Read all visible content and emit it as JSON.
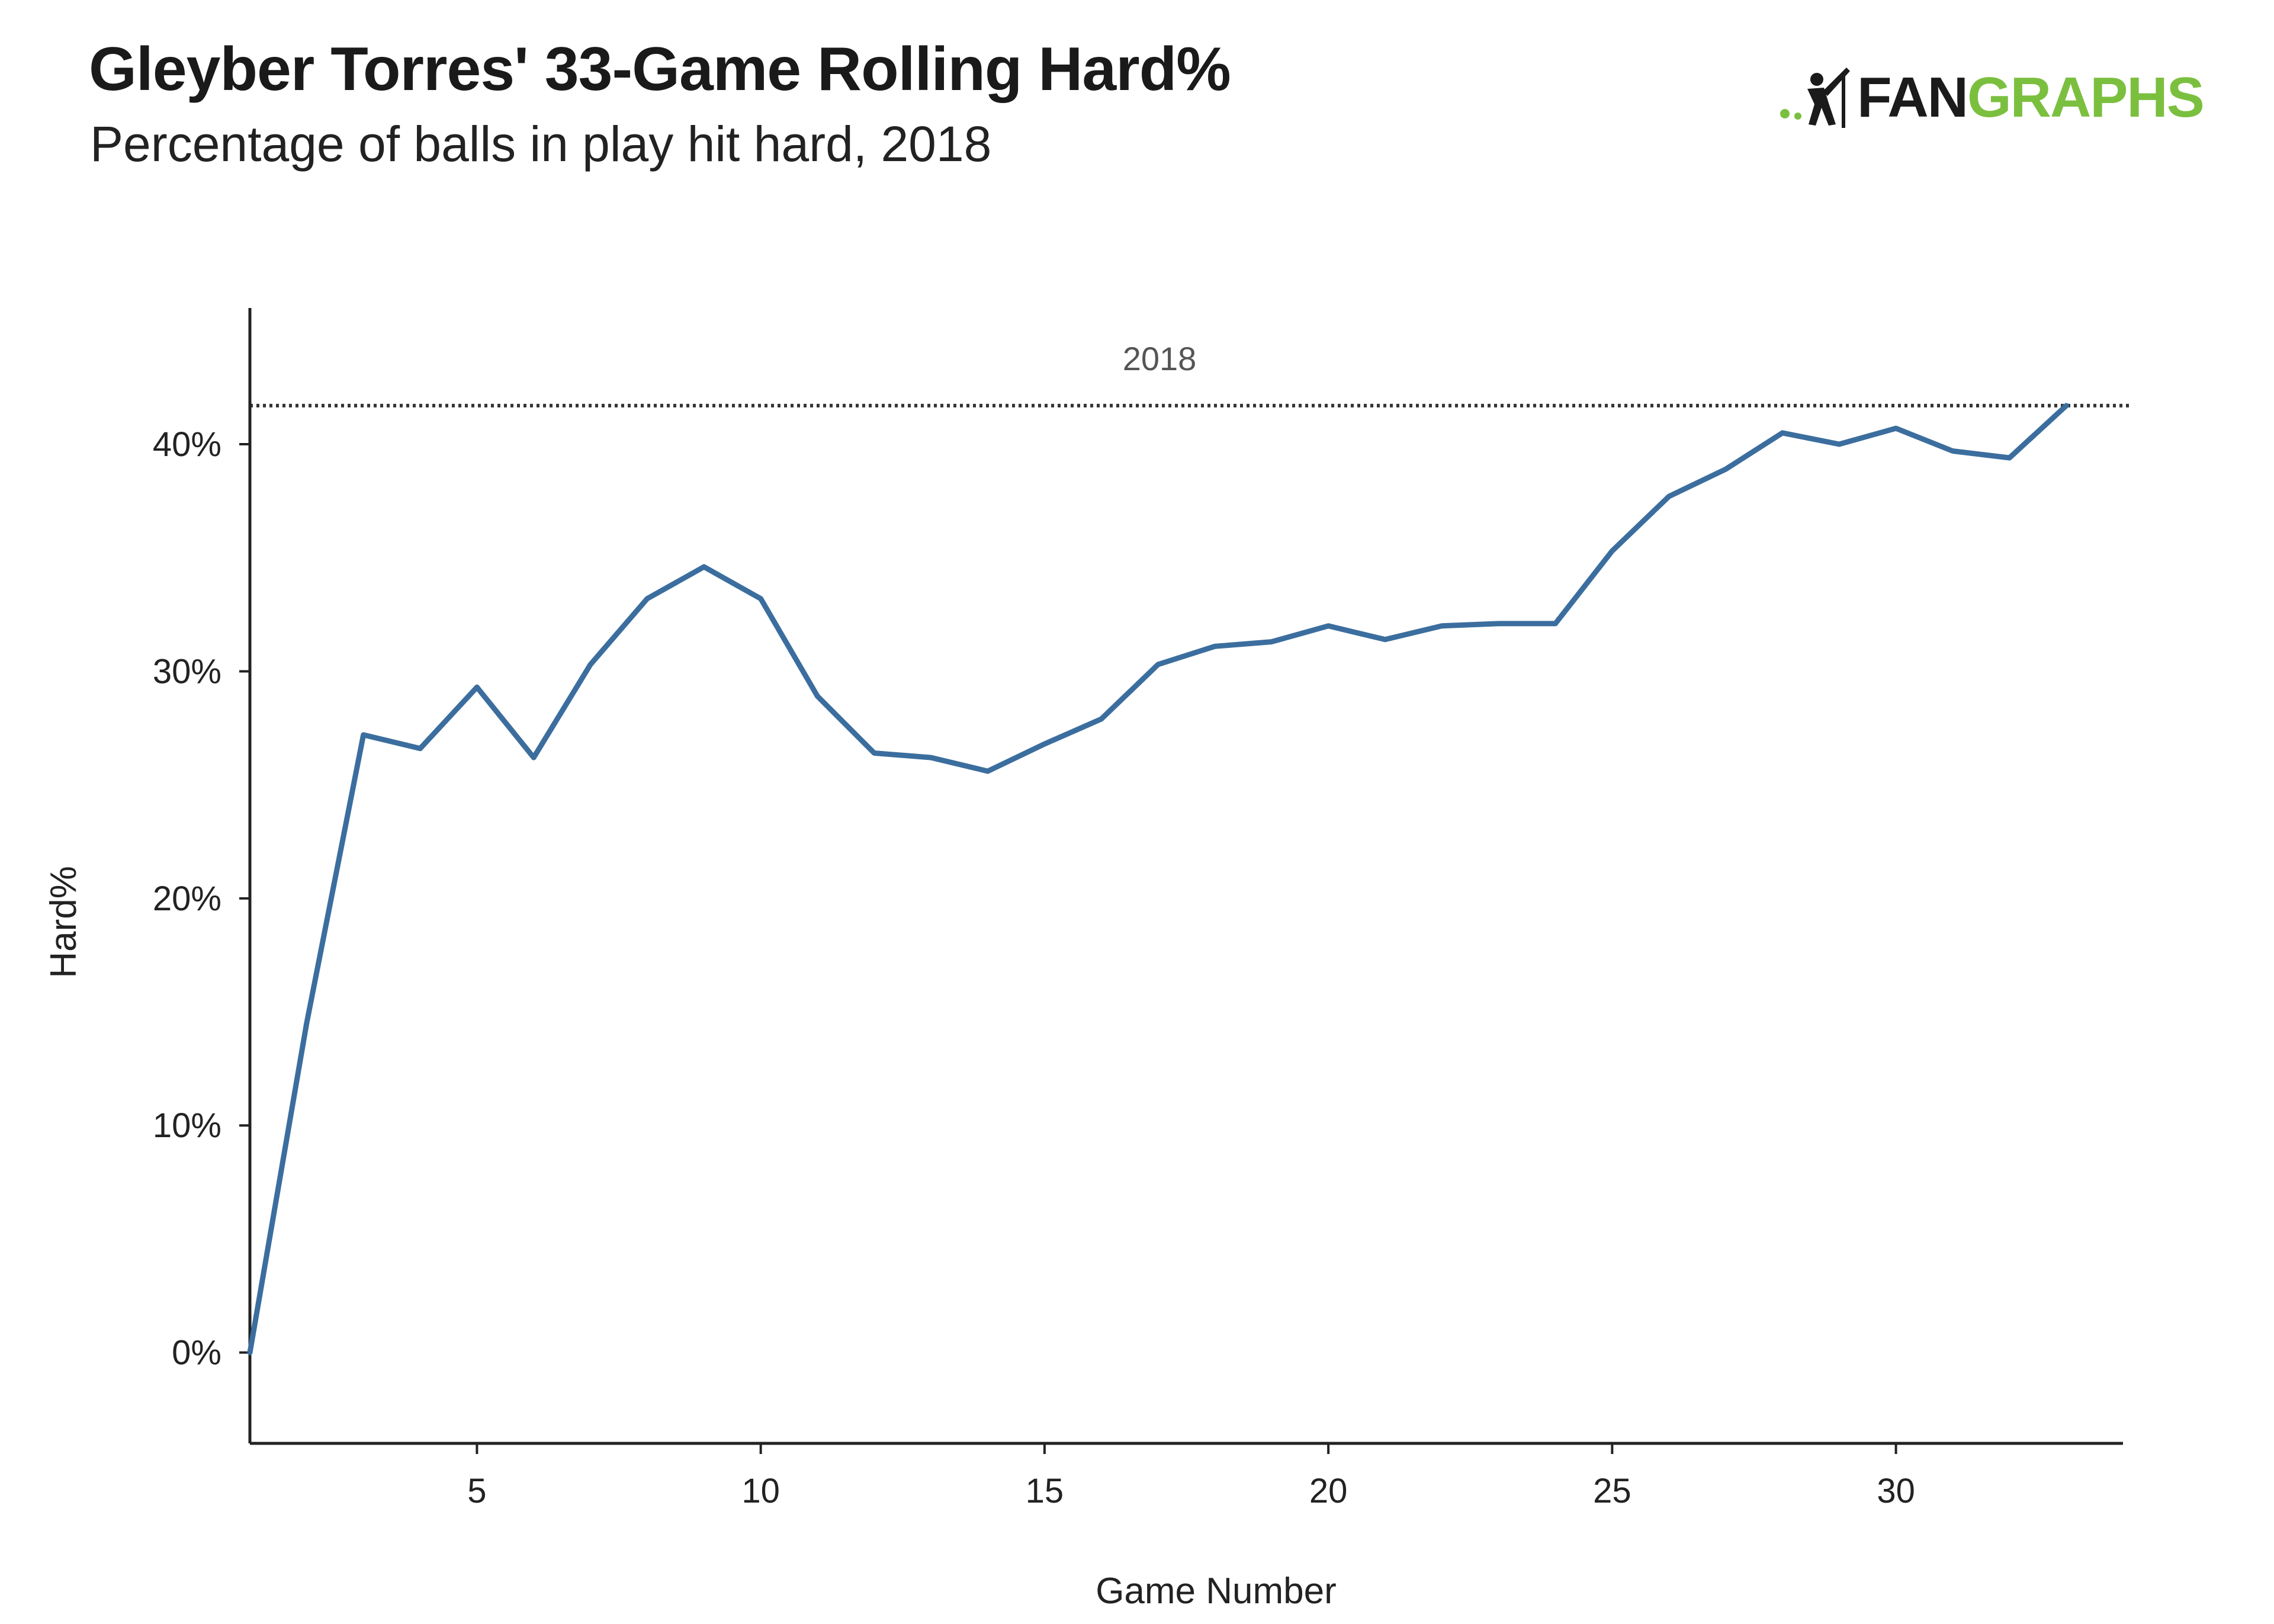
{
  "header": {
    "title": "Gleyber Torres' 33-Game Rolling Hard%",
    "subtitle": "Percentage of balls in play hit hard, 2018"
  },
  "logo": {
    "text_dark": "FAN",
    "text_green": "GRAPHS",
    "icon": "batter-icon",
    "color_green": "#7bbf3f",
    "color_dark": "#1b1b1b"
  },
  "chart_data": {
    "type": "line",
    "title": "Gleyber Torres' 33-Game Rolling Hard%",
    "subtitle": "Percentage of balls in play hit hard, 2018",
    "xlabel": "Game Number",
    "ylabel": "Hard%",
    "xlim": [
      1,
      34
    ],
    "ylim": [
      -4,
      46
    ],
    "x_ticks": [
      5,
      10,
      15,
      20,
      25,
      30
    ],
    "x_tick_labels": [
      "5",
      "10",
      "15",
      "20",
      "25",
      "30"
    ],
    "y_ticks": [
      0,
      10,
      20,
      30,
      40
    ],
    "y_tick_labels": [
      "0%",
      "10%",
      "20%",
      "30%",
      "40%"
    ],
    "grid": false,
    "legend": "none",
    "series": [
      {
        "color": "#3b6e9e",
        "x": [
          1,
          2,
          3,
          4,
          5,
          6,
          7,
          8,
          9,
          10,
          11,
          12,
          13,
          14,
          15,
          16,
          17,
          18,
          19,
          20,
          21,
          22,
          23,
          24,
          25,
          26,
          27,
          28,
          29,
          30,
          31,
          32,
          33
        ],
        "y": [
          0,
          14.5,
          27.2,
          26.6,
          29.3,
          26.2,
          30.3,
          33.2,
          34.6,
          33.2,
          28.9,
          26.4,
          26.2,
          25.6,
          26.8,
          27.9,
          30.3,
          31.1,
          31.3,
          32.0,
          31.4,
          32.0,
          32.1,
          32.1,
          35.3,
          37.7,
          38.9,
          40.5,
          40.0,
          40.7,
          39.7,
          39.4,
          41.7
        ]
      }
    ],
    "reference_line": {
      "label": "2018",
      "value": 41.7,
      "style": "dotted",
      "color": "#333333"
    },
    "line_color": "#3b6e9e"
  }
}
